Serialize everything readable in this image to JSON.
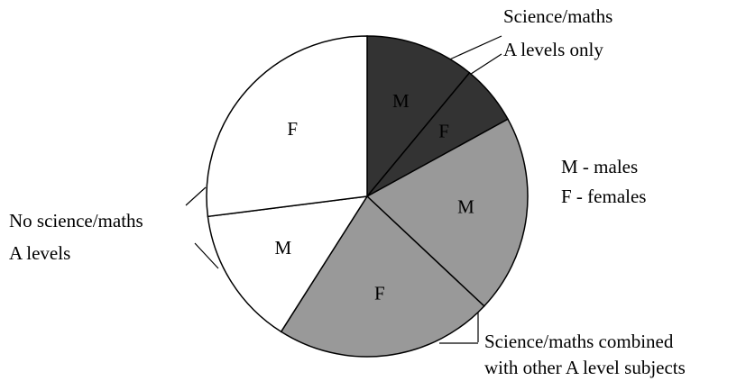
{
  "chart_data": {
    "type": "pie",
    "categories": [
      "M",
      "F",
      "M",
      "F",
      "M",
      "F"
    ],
    "values": [
      11,
      6,
      20,
      22,
      14,
      27
    ],
    "colors": [
      "#333333",
      "#333333",
      "#999999",
      "#999999",
      "#ffffff",
      "#ffffff"
    ],
    "label_colors": [
      "#000000",
      "#000000",
      "#000000",
      "#000000",
      "#000000",
      "#000000"
    ],
    "legend": [
      "M - males",
      "F - females"
    ],
    "annotations": [
      [
        "Science/maths",
        "A levels only"
      ],
      [
        "No science/maths",
        "A levels"
      ],
      [
        "Science/maths combined",
        "with other A level subjects"
      ]
    ]
  }
}
